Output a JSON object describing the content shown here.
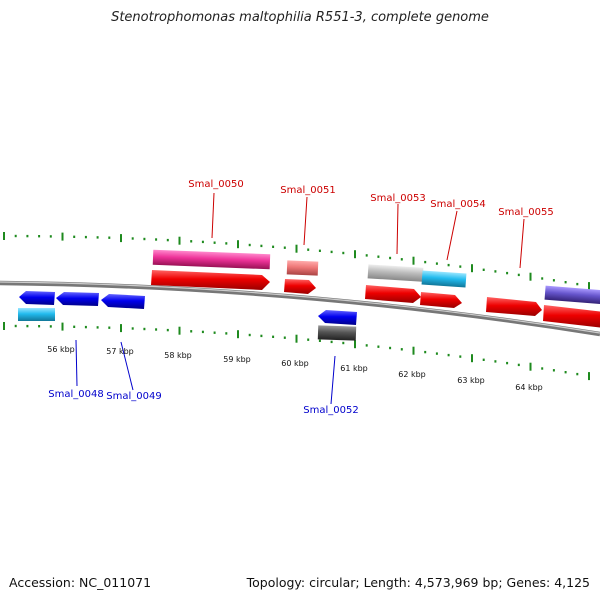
{
  "title": "Stenotrophomonas maltophilia R551-3, complete genome",
  "footer": {
    "accession": "Accession: NC_011071",
    "topology": "Topology: circular; Length: 4,573,969 bp; Genes: 4,125"
  },
  "genome_map": {
    "tick_labels": [
      "56 kbp",
      "57 kbp",
      "58 kbp",
      "59 kbp",
      "60 kbp",
      "61 kbp",
      "62 kbp",
      "63 kbp",
      "64 kbp"
    ],
    "gene_labels_above": [
      "Smal_0050",
      "Smal_0051",
      "Smal_0053",
      "Smal_0054",
      "Smal_0055"
    ],
    "gene_labels_below": [
      "Smal_0048",
      "Smal_0049",
      "Smal_0052"
    ],
    "colors": {
      "backbone": "#888888",
      "ticks": "#1e8a1e",
      "label_above": "#cc0000",
      "label_below": "#0000cc",
      "gene_red": "#ee0000",
      "gene_blue": "#0000ee",
      "gene_cyan": "#22bbee",
      "gene_magenta": "#ee3399",
      "gene_salmon": "#ee7777",
      "gene_grey": "#bbbbbb",
      "gene_darkgrey": "#555555",
      "gene_purple": "#6655cc"
    }
  }
}
